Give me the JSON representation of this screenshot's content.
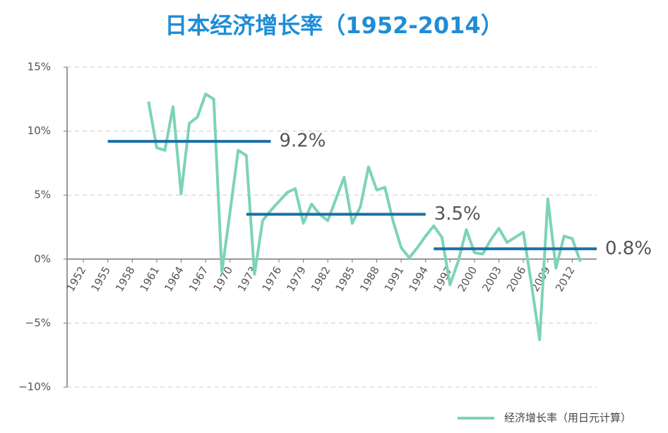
{
  "chart_data": {
    "type": "line",
    "title": "日本经济增长率（1952-2014）",
    "x": [
      1960,
      1961,
      1962,
      1963,
      1964,
      1965,
      1966,
      1967,
      1968,
      1969,
      1970,
      1971,
      1972,
      1973,
      1974,
      1975,
      1976,
      1977,
      1978,
      1979,
      1980,
      1981,
      1982,
      1983,
      1984,
      1985,
      1986,
      1987,
      1988,
      1989,
      1990,
      1991,
      1992,
      1993,
      1994,
      1995,
      1996,
      1997,
      1998,
      1999,
      2000,
      2001,
      2002,
      2003,
      2004,
      2005,
      2006,
      2007,
      2008,
      2009,
      2010,
      2011,
      2012,
      2013
    ],
    "series": [
      {
        "name": "经济增长率（用日元计算）",
        "color": "#7dd3b8",
        "values": [
          12.3,
          8.7,
          8.5,
          11.9,
          5.1,
          10.6,
          11.1,
          12.9,
          12.5,
          -1.0,
          3.7,
          8.5,
          8.1,
          -1.2,
          3.0,
          3.8,
          4.5,
          5.2,
          5.5,
          2.8,
          4.3,
          3.5,
          3.0,
          4.7,
          6.4,
          2.8,
          4.1,
          7.2,
          5.4,
          5.6,
          3.0,
          0.9,
          0.1,
          0.9,
          1.8,
          2.6,
          1.7,
          -2.0,
          -0.2,
          2.3,
          0.5,
          0.4,
          1.5,
          2.4,
          1.3,
          1.7,
          2.1,
          -2.0,
          -6.3,
          4.7,
          -0.7,
          1.8,
          1.6,
          -0.2
        ]
      }
    ],
    "xlim": [
      1950,
      2015
    ],
    "xticks": [
      1952,
      1955,
      1958,
      1961,
      1964,
      1967,
      1970,
      1973,
      1976,
      1979,
      1982,
      1985,
      1988,
      1991,
      1994,
      1997,
      2000,
      2003,
      2006,
      2009,
      2012
    ],
    "ylim": [
      -10,
      15
    ],
    "yticks": [
      {
        "value": -10,
        "label": "−10%"
      },
      {
        "value": -5,
        "label": "−5%"
      },
      {
        "value": 0,
        "label": "0%"
      },
      {
        "value": 5,
        "label": "5%"
      },
      {
        "value": 10,
        "label": "10%"
      },
      {
        "value": 15,
        "label": "15%"
      }
    ],
    "grid": true,
    "legend": "bottom-right",
    "averages": {
      "color": "#1a6fa8",
      "items": [
        {
          "value": 9.2,
          "label": "9.2%",
          "x": [
            1955,
            1975
          ]
        },
        {
          "value": 3.5,
          "label": "3.5%",
          "x": [
            1972,
            1994
          ]
        },
        {
          "value": 0.8,
          "label": "0.8%",
          "x": [
            1995,
            2015
          ]
        }
      ]
    }
  }
}
